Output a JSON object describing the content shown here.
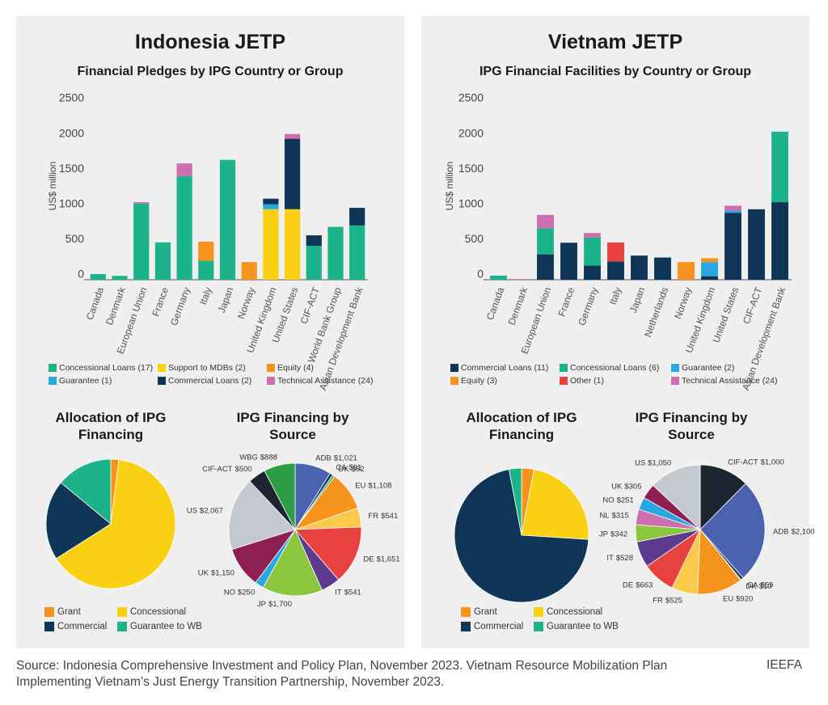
{
  "panels": [
    {
      "title": "Indonesia JETP"
    },
    {
      "title": "Vietnam JETP"
    }
  ],
  "source": "Source: Indonesia Comprehensive Investment and Policy Plan, November 2023. Vietnam Resource Mobilization Plan Implementing Vietnam’s Just Energy Transition Partnership, November 2023.",
  "brand": "IEEFA",
  "chart_data": [
    {
      "type": "stacked_bar",
      "title": "Financial Pledges by IPG Country or Group",
      "y_label": "US$ million",
      "categories": [
        "Canada",
        "Denmark",
        "European Union",
        "France",
        "Germany",
        "Italy",
        "Japan",
        "Norway",
        "United Kingdom",
        "United States",
        "CIF-ACT",
        "World Bank Group",
        "Asian Development Bank"
      ],
      "ylim": [
        0,
        2500
      ],
      "yticks": [
        0,
        500,
        1000,
        1500,
        2000,
        2500
      ],
      "series": [
        {
          "name": "Concessional Loans (17)",
          "color": "#1db38a",
          "values": [
            80,
            55,
            1080,
            530,
            1470,
            270,
            1700,
            null,
            null,
            null,
            480,
            750,
            770
          ]
        },
        {
          "name": "Support to MDBs (2)",
          "color": "#f9d013",
          "values": [
            null,
            null,
            null,
            null,
            null,
            null,
            null,
            null,
            1000,
            1000,
            null,
            null,
            null
          ]
        },
        {
          "name": "Equity (4)",
          "color": "#f7941d",
          "values": [
            null,
            null,
            null,
            null,
            null,
            270,
            null,
            250,
            null,
            null,
            null,
            null,
            null
          ]
        },
        {
          "name": "Guarantee (1)",
          "color": "#2aa6e0",
          "values": [
            null,
            null,
            null,
            null,
            null,
            null,
            null,
            null,
            70,
            null,
            null,
            null,
            null
          ]
        },
        {
          "name": "Commercial Loans (2)",
          "color": "#0f3557",
          "values": [
            null,
            null,
            null,
            null,
            null,
            null,
            null,
            null,
            80,
            1000,
            150,
            null,
            250
          ]
        },
        {
          "name": "Technical Assistance (24)",
          "color": "#cc6fae",
          "values": [
            null,
            null,
            20,
            null,
            180,
            null,
            null,
            null,
            null,
            67,
            null,
            null,
            null
          ]
        }
      ]
    },
    {
      "type": "pie",
      "title": "Allocation of IPG Financing",
      "categories": [
        "Grant",
        "Concessional",
        "Commercial",
        "Guarantee to WB"
      ],
      "values": [
        2,
        64,
        20,
        14
      ],
      "colors": [
        "#f7941d",
        "#f9d013",
        "#0f3557",
        "#1db38a"
      ]
    },
    {
      "type": "labeled_pie",
      "title": "IPG Financing by Source",
      "categories": [
        "ADB",
        "CA",
        "DK",
        "EU",
        "FR",
        "DE",
        "IT",
        "JP",
        "NO",
        "UK",
        "US",
        "CIF-ACT",
        "WBG"
      ],
      "values": [
        1021,
        91,
        62,
        1108,
        541,
        1651,
        541,
        1700,
        250,
        1150,
        2067,
        500,
        888
      ],
      "value_labels": [
        "$1,021",
        "$91",
        "$62",
        "$1,108",
        "$541",
        "$1,651",
        "$541",
        "$1,700",
        "$250",
        "$1,150",
        "$2,067",
        "$500",
        "$888"
      ],
      "colors": [
        "#4a62b0",
        "#1c3a5e",
        "#1db38a",
        "#f7941d",
        "#fdc94a",
        "#e8423f",
        "#5c3a8f",
        "#8cc63f",
        "#2aa6e0",
        "#8e1f52",
        "#c5c8cf",
        "#1c2530",
        "#2e9d47"
      ]
    },
    {
      "type": "stacked_bar",
      "title": "IPG Financial Facilities by Country or Group",
      "y_label": "US$ million",
      "categories": [
        "Canada",
        "Denmark",
        "European Union",
        "France",
        "Germany",
        "Italy",
        "Japan",
        "Netherlands",
        "Norway",
        "United Kingdom",
        "United States",
        "CIF-ACT",
        "Asian Development Bank"
      ],
      "ylim": [
        0,
        2500
      ],
      "yticks": [
        0,
        500,
        1000,
        1500,
        2000,
        2500
      ],
      "series": [
        {
          "name": "Commercial Loans (11)",
          "color": "#0f3557",
          "values": [
            null,
            null,
            360,
            525,
            200,
            260,
            342,
            315,
            null,
            50,
            950,
            1000,
            1100
          ]
        },
        {
          "name": "Concessional Loans (6)",
          "color": "#1db38a",
          "values": [
            59,
            null,
            370,
            null,
            400,
            null,
            null,
            null,
            null,
            null,
            null,
            null,
            1000
          ]
        },
        {
          "name": "Guarantee (2)",
          "color": "#2aa6e0",
          "values": [
            null,
            null,
            null,
            null,
            null,
            null,
            null,
            null,
            null,
            200,
            30,
            null,
            null
          ]
        },
        {
          "name": "Equity (3)",
          "color": "#f7941d",
          "values": [
            null,
            null,
            null,
            null,
            null,
            null,
            null,
            null,
            251,
            55,
            null,
            null,
            null
          ]
        },
        {
          "name": "Other (1)",
          "color": "#e8423f",
          "values": [
            null,
            null,
            null,
            null,
            null,
            268,
            null,
            null,
            null,
            null,
            null,
            null,
            null
          ]
        },
        {
          "name": "Technical Assistance (24)",
          "color": "#cc6fae",
          "values": [
            null,
            10,
            190,
            null,
            63,
            null,
            null,
            null,
            null,
            null,
            70,
            null,
            null
          ]
        }
      ]
    },
    {
      "type": "pie",
      "title": "Allocation of IPG Financing",
      "categories": [
        "Grant",
        "Concessional",
        "Commercial",
        "Guarantee to WB"
      ],
      "values": [
        3,
        23,
        71,
        3
      ],
      "colors": [
        "#f7941d",
        "#f9d013",
        "#0f3557",
        "#1db38a"
      ]
    },
    {
      "type": "labeled_pie",
      "title": "IPG Financing by Source",
      "categories": [
        "CIF-ACT",
        "ADB",
        "CA",
        "DK",
        "EU",
        "FR",
        "DE",
        "IT",
        "JP",
        "NL",
        "NO",
        "UK",
        "US"
      ],
      "values": [
        1000,
        2100,
        59,
        10,
        920,
        525,
        663,
        528,
        342,
        315,
        251,
        305,
        1050
      ],
      "value_labels": [
        "$1,000",
        "$2,100",
        "$59",
        "$10",
        "$920",
        "$525",
        "$663",
        "$528",
        "$342",
        "$315",
        "$251",
        "$305",
        "$1,050"
      ],
      "colors": [
        "#1c2530",
        "#4a62b0",
        "#1c3a5e",
        "#1db38a",
        "#f7941d",
        "#fdc94a",
        "#e8423f",
        "#5c3a8f",
        "#8cc63f",
        "#cc6fae",
        "#2aa6e0",
        "#8e1f52",
        "#c5c8cf"
      ]
    }
  ]
}
